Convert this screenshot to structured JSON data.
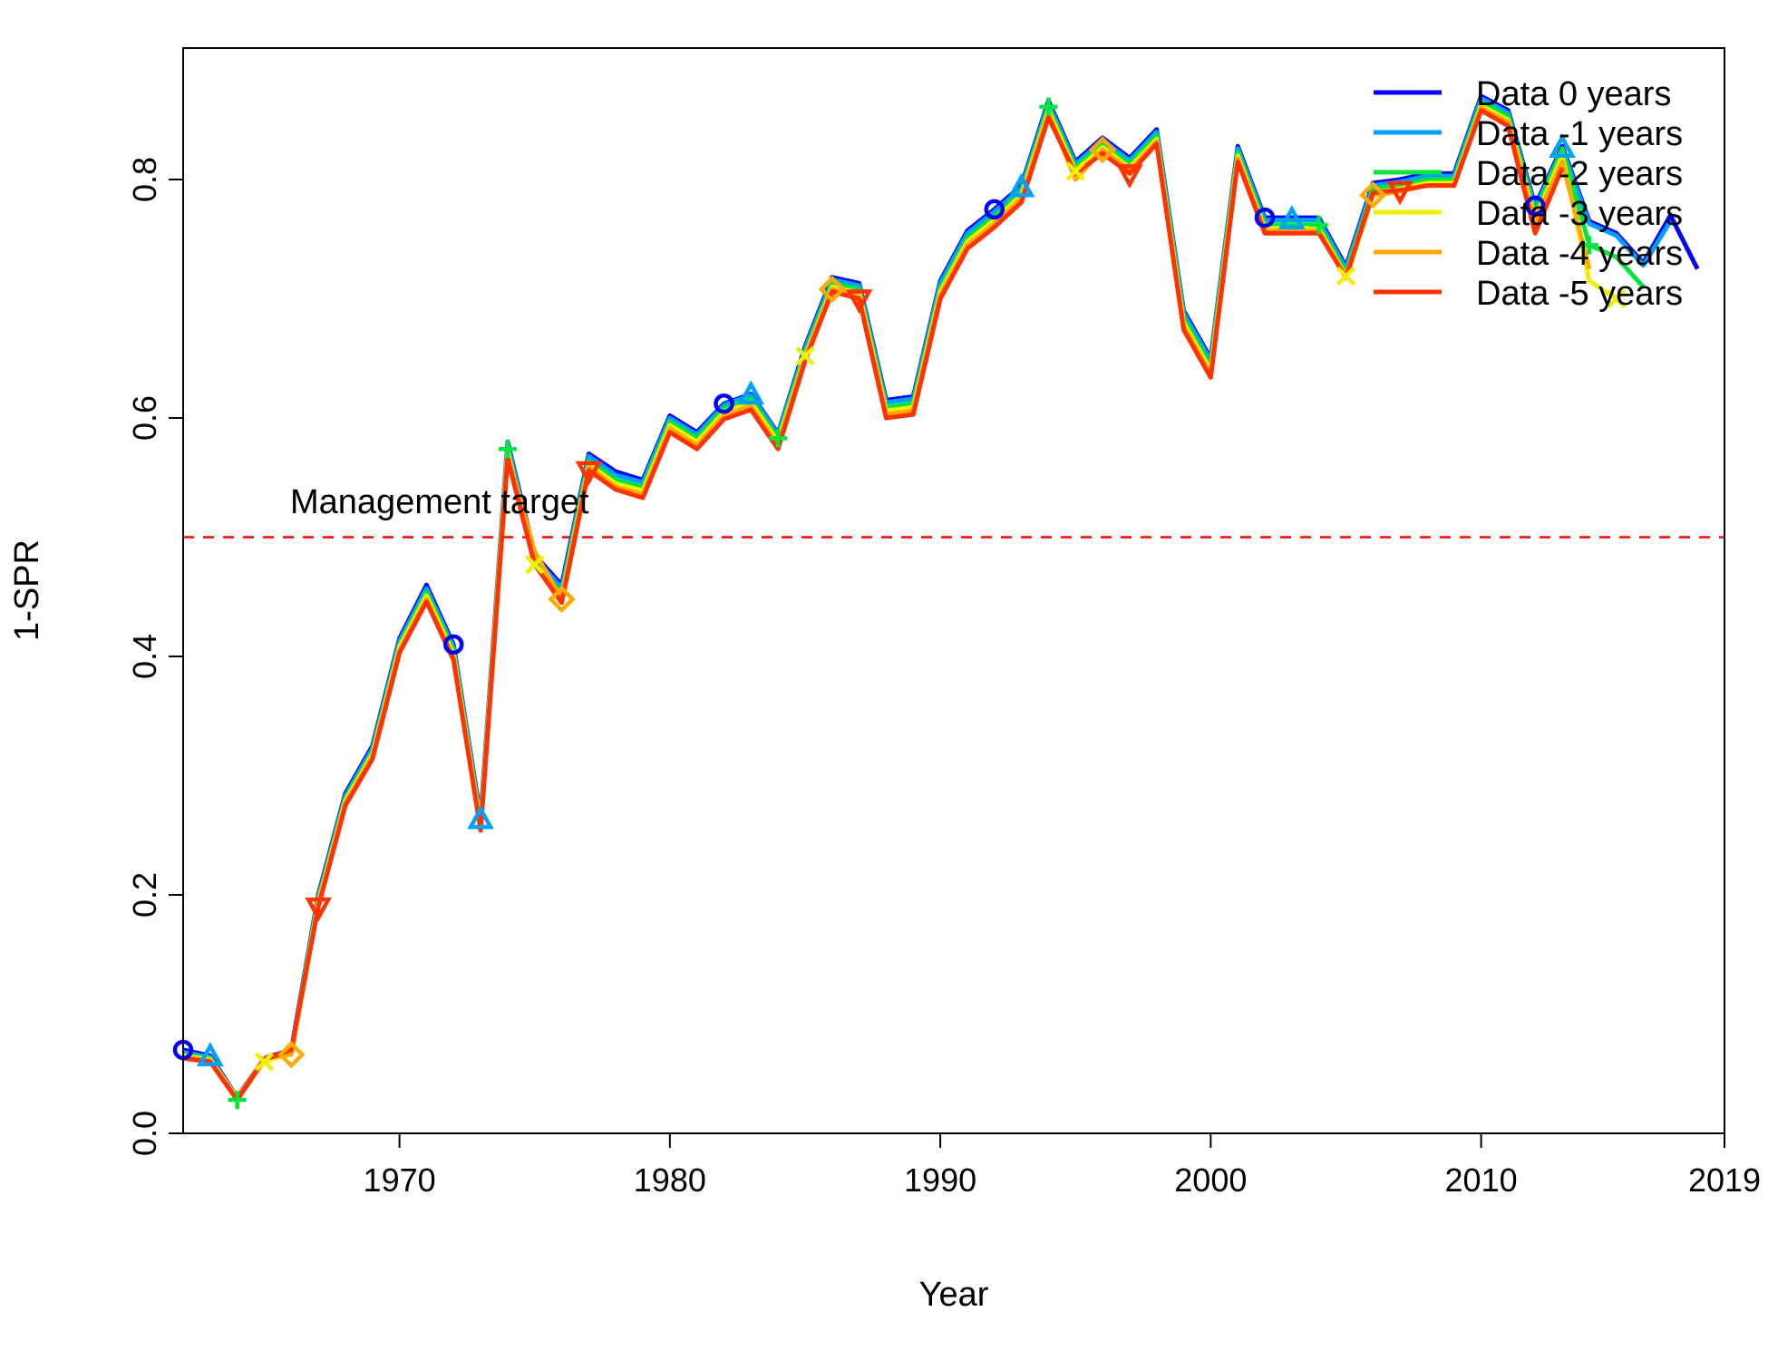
{
  "chart_data": {
    "type": "line",
    "title": "",
    "xlabel": "Year",
    "ylabel": "1-SPR",
    "xlim": [
      1962,
      2019
    ],
    "ylim": [
      0,
      0.9
    ],
    "xticks": [
      1970,
      1980,
      1990,
      2000,
      2010,
      2019
    ],
    "yticks": [
      0.0,
      0.2,
      0.4,
      0.6,
      0.8
    ],
    "xtick_labels": [
      "1970",
      "1980",
      "1990",
      "2000",
      "2010",
      "2019"
    ],
    "ytick_labels": [
      "0.0",
      "0.2",
      "0.4",
      "0.6",
      "0.8"
    ],
    "grid": false,
    "legend_position": "top-right",
    "reference_line": {
      "y": 0.5,
      "color": "#ff0000",
      "style": "dashed",
      "label": "Management target"
    },
    "series": [
      {
        "name": "Data 0 years",
        "color": "#0000ff",
        "marker": "circle",
        "start_year": 1962,
        "values": [
          0.07,
          0.065,
          0.03,
          0.063,
          0.07,
          0.2,
          0.285,
          0.325,
          0.415,
          0.46,
          0.41,
          0.265,
          0.58,
          0.485,
          0.46,
          0.57,
          0.555,
          0.548,
          0.602,
          0.588,
          0.612,
          0.62,
          0.587,
          0.66,
          0.718,
          0.713,
          0.615,
          0.618,
          0.715,
          0.757,
          0.775,
          0.795,
          0.866,
          0.815,
          0.835,
          0.818,
          0.842,
          0.69,
          0.65,
          0.828,
          0.768,
          0.768,
          0.768,
          0.727,
          0.797,
          0.8,
          0.805,
          0.805,
          0.87,
          0.858,
          0.778,
          0.828,
          0.765,
          0.755,
          0.73,
          0.77,
          0.725
        ]
      },
      {
        "name": "Data -1 years",
        "color": "#00a0ff",
        "marker": "triangle-up",
        "start_year": 1962,
        "values": [
          0.068,
          0.064,
          0.029,
          0.062,
          0.069,
          0.198,
          0.283,
          0.323,
          0.413,
          0.457,
          0.408,
          0.263,
          0.578,
          0.483,
          0.457,
          0.568,
          0.552,
          0.546,
          0.6,
          0.586,
          0.611,
          0.619,
          0.586,
          0.658,
          0.716,
          0.711,
          0.613,
          0.616,
          0.713,
          0.755,
          0.773,
          0.793,
          0.864,
          0.813,
          0.833,
          0.816,
          0.84,
          0.688,
          0.648,
          0.826,
          0.766,
          0.766,
          0.766,
          0.725,
          0.795,
          0.798,
          0.803,
          0.803,
          0.868,
          0.856,
          0.776,
          0.826,
          0.763,
          0.753,
          0.728,
          0.765
        ]
      },
      {
        "name": "Data -2 years",
        "color": "#00e639",
        "marker": "plus",
        "start_year": 1962,
        "values": [
          0.066,
          0.063,
          0.028,
          0.061,
          0.068,
          0.196,
          0.281,
          0.32,
          0.41,
          0.454,
          0.405,
          0.26,
          0.574,
          0.48,
          0.453,
          0.564,
          0.548,
          0.542,
          0.597,
          0.583,
          0.608,
          0.616,
          0.583,
          0.655,
          0.713,
          0.708,
          0.609,
          0.612,
          0.709,
          0.751,
          0.769,
          0.79,
          0.861,
          0.81,
          0.83,
          0.813,
          0.837,
          0.684,
          0.644,
          0.823,
          0.762,
          0.762,
          0.762,
          0.722,
          0.792,
          0.795,
          0.8,
          0.8,
          0.865,
          0.853,
          0.772,
          0.826,
          0.745,
          0.735,
          0.71
        ]
      },
      {
        "name": "Data -3 years",
        "color": "#f0f000",
        "marker": "cross",
        "start_year": 1962,
        "values": [
          0.065,
          0.062,
          0.03,
          0.06,
          0.067,
          0.194,
          0.279,
          0.318,
          0.408,
          0.451,
          0.402,
          0.258,
          0.572,
          0.477,
          0.45,
          0.561,
          0.545,
          0.539,
          0.594,
          0.58,
          0.605,
          0.613,
          0.58,
          0.652,
          0.71,
          0.705,
          0.606,
          0.609,
          0.706,
          0.748,
          0.766,
          0.787,
          0.858,
          0.807,
          0.827,
          0.81,
          0.834,
          0.68,
          0.64,
          0.82,
          0.759,
          0.759,
          0.759,
          0.719,
          0.789,
          0.792,
          0.797,
          0.797,
          0.862,
          0.85,
          0.768,
          0.82,
          0.715,
          0.7
        ]
      },
      {
        "name": "Data -4 years",
        "color": "#ffaa00",
        "marker": "diamond",
        "start_year": 1962,
        "values": [
          0.064,
          0.061,
          0.029,
          0.063,
          0.066,
          0.192,
          0.277,
          0.316,
          0.405,
          0.448,
          0.399,
          0.256,
          0.569,
          0.488,
          0.448,
          0.559,
          0.542,
          0.536,
          0.591,
          0.577,
          0.602,
          0.61,
          0.577,
          0.651,
          0.708,
          0.702,
          0.603,
          0.606,
          0.703,
          0.745,
          0.763,
          0.784,
          0.856,
          0.8,
          0.825,
          0.808,
          0.832,
          0.677,
          0.637,
          0.818,
          0.757,
          0.757,
          0.757,
          0.717,
          0.787,
          0.79,
          0.795,
          0.795,
          0.86,
          0.848,
          0.765,
          0.815,
          0.725
        ]
      },
      {
        "name": "Data -5 years",
        "color": "#ff3300",
        "marker": "triangle-down",
        "start_year": 1962,
        "values": [
          0.063,
          0.06,
          0.028,
          0.062,
          0.07,
          0.19,
          0.275,
          0.314,
          0.403,
          0.446,
          0.397,
          0.254,
          0.566,
          0.477,
          0.445,
          0.556,
          0.54,
          0.533,
          0.588,
          0.574,
          0.599,
          0.607,
          0.574,
          0.648,
          0.706,
          0.7,
          0.6,
          0.603,
          0.7,
          0.742,
          0.76,
          0.781,
          0.852,
          0.805,
          0.822,
          0.805,
          0.83,
          0.674,
          0.634,
          0.815,
          0.755,
          0.755,
          0.755,
          0.718,
          0.789,
          0.791,
          0.795,
          0.795,
          0.858,
          0.845,
          0.755,
          0.81
        ]
      }
    ]
  }
}
